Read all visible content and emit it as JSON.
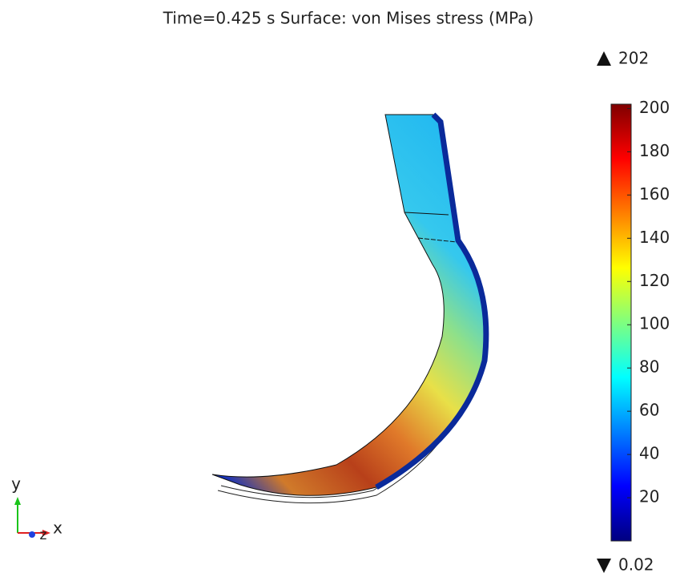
{
  "chart_data": {
    "type": "surface",
    "title": "Time=0.425 s   Surface: von Mises stress (MPa)",
    "clim": [
      0.02,
      202
    ],
    "cticks": [
      20,
      40,
      60,
      80,
      100,
      120,
      140,
      160,
      180,
      200
    ],
    "colormap": [
      "#00007f",
      "#0000ff",
      "#007fff",
      "#00ffff",
      "#7fff7f",
      "#ffff00",
      "#ff7f00",
      "#ff0000",
      "#7f0000"
    ],
    "axes_labels": {
      "x": "x",
      "y": "y",
      "z": "z"
    }
  }
}
